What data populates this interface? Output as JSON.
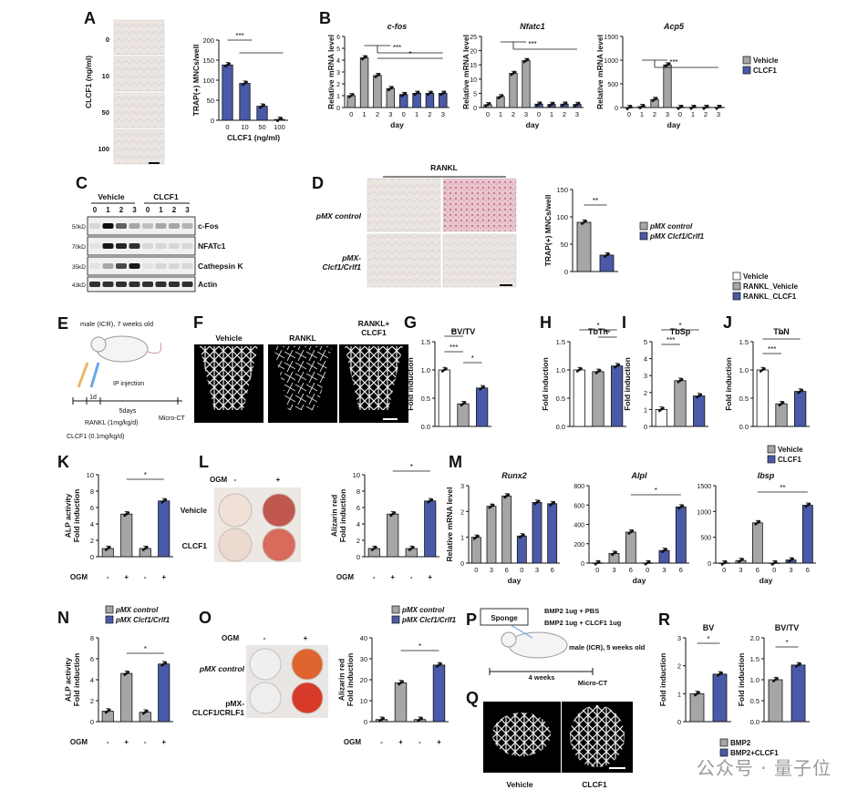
{
  "colors": {
    "vehicle": "#a6a6a6",
    "clcf1": "#4a5aa8",
    "white": "#ffffff",
    "black": "#111111"
  },
  "panels": {
    "A": {
      "letter": "A",
      "ylabel": "TRAP(+) MNCs/well",
      "xlabel": "CLCF1 (ng/ml)",
      "side_label": "CLCF1 (ng/ml)",
      "images": [
        "0",
        "10",
        "50",
        "100"
      ],
      "chart_data": {
        "type": "bar",
        "categories": [
          "0",
          "10",
          "50",
          "100"
        ],
        "values": [
          138,
          92,
          35,
          2
        ],
        "ylim": [
          0,
          200
        ],
        "yticks": [
          0,
          50,
          100,
          150,
          200
        ],
        "sig": "***"
      }
    },
    "B": {
      "letter": "B",
      "ylabel": "Relative mRNA level",
      "xlabel": "day",
      "charts": [
        {
          "title": "c-fos",
          "chart_data": {
            "type": "bar",
            "x": [
              "0",
              "1",
              "2",
              "3",
              "0",
              "1",
              "2",
              "3"
            ],
            "values": [
              1,
              4.2,
              2.7,
              1.6,
              1.1,
              1.2,
              1.2,
              1.2
            ],
            "ylim": [
              0,
              6
            ],
            "yticks": [
              0,
              1,
              2,
              3,
              4,
              5,
              6
            ],
            "sig": [
              "***",
              "*"
            ]
          }
        },
        {
          "title": "Nfatc1",
          "chart_data": {
            "type": "bar",
            "x": [
              "0",
              "1",
              "2",
              "3",
              "0",
              "1",
              "2",
              "3"
            ],
            "values": [
              1,
              3.8,
              12,
              16.5,
              1.2,
              1.1,
              1.2,
              1.1
            ],
            "ylim": [
              0,
              25
            ],
            "yticks": [
              0,
              5,
              10,
              15,
              20,
              25
            ],
            "sig": [
              "***"
            ]
          }
        },
        {
          "title": "Acp5",
          "chart_data": {
            "type": "bar",
            "x": [
              "0",
              "1",
              "2",
              "3",
              "0",
              "1",
              "2",
              "3"
            ],
            "values": [
              1,
              20,
              170,
              900,
              5,
              5,
              5,
              5
            ],
            "ylim": [
              0,
              1500
            ],
            "yticks": [
              0,
              500,
              1000,
              1500
            ],
            "sig": [
              "***"
            ]
          }
        }
      ],
      "legend": [
        "Vehicle",
        "CLCF1"
      ]
    },
    "C": {
      "letter": "C",
      "groups": [
        "Vehicle",
        "CLCF1"
      ],
      "lanes": [
        "0",
        "1",
        "2",
        "3",
        "0",
        "1",
        "2",
        "3"
      ],
      "bands": [
        "c-Fos",
        "NFATc1",
        "Cathepsin K",
        "Actin"
      ],
      "markers": [
        "50kD",
        "70kD",
        "35kD",
        "43kD"
      ]
    },
    "D": {
      "letter": "D",
      "top_label": "RANKL",
      "rows": [
        "pMX control",
        "pMX-\nClcf1/Crlf1"
      ],
      "ylabel": "TRAP(+) MNCs/well",
      "chart_data": {
        "type": "bar",
        "categories": [
          "pMX control",
          "pMX Clcf1/Crlf1"
        ],
        "values": [
          90,
          30
        ],
        "ylim": [
          0,
          150
        ],
        "yticks": [
          0,
          50,
          100,
          150
        ],
        "sig": "**"
      },
      "legend": [
        "pMX control",
        "pMX Clcf1/Crlf1"
      ]
    },
    "E": {
      "letter": "E",
      "mouse": "male (ICR), 7 weeks old",
      "ip": "IP injection",
      "d1": "1d",
      "d5": "5days",
      "rankl": "RANKL (1mg/kg/d)",
      "clcf1": "CLCF1 (0.1mg/kg/d)",
      "ct": "Micro-CT"
    },
    "F": {
      "letter": "F",
      "labels": [
        "Vehicle",
        "RANKL",
        "RANKL+\nCLCF1"
      ]
    },
    "legendGJ": [
      "Vehicle",
      "RANKL_Vehicle",
      "RANKL_CLCF1"
    ],
    "G": {
      "letter": "G",
      "title": "BV/TV",
      "ylabel": "Fold induction",
      "chart_data": {
        "type": "bar",
        "values": [
          1.0,
          0.4,
          0.68
        ],
        "ylim": [
          0,
          1.5
        ],
        "yticks": [
          0,
          0.5,
          1.0,
          1.5
        ],
        "sig": [
          "**",
          "***",
          "*"
        ]
      }
    },
    "H": {
      "letter": "H",
      "title": "TbTh",
      "ylabel": "Fold induction",
      "chart_data": {
        "type": "bar",
        "values": [
          1.0,
          0.97,
          1.07
        ],
        "ylim": [
          0,
          1.5
        ],
        "yticks": [
          0,
          0.5,
          1.0,
          1.5
        ],
        "sig": [
          "*",
          "**"
        ]
      }
    },
    "I": {
      "letter": "I",
      "title": "TbSp",
      "ylabel": "Fold induction",
      "chart_data": {
        "type": "bar",
        "values": [
          1.0,
          2.7,
          1.8
        ],
        "ylim": [
          0,
          5
        ],
        "yticks": [
          0,
          1,
          2,
          3,
          4,
          5
        ],
        "sig": [
          "*",
          "***"
        ]
      }
    },
    "J": {
      "letter": "J",
      "title": "TbN",
      "ylabel": "Fold induction",
      "chart_data": {
        "type": "bar",
        "values": [
          1.0,
          0.4,
          0.62
        ],
        "ylim": [
          0,
          1.5
        ],
        "yticks": [
          0,
          0.5,
          1.0,
          1.5
        ],
        "sig": [
          "**",
          "***"
        ]
      }
    },
    "K": {
      "letter": "K",
      "ylabel": "ALP activity\nFold induction",
      "ogm": "OGM",
      "signs": [
        "-",
        "+",
        "-",
        "+"
      ],
      "chart_data": {
        "type": "bar",
        "values": [
          1.0,
          5.2,
          1.0,
          6.8
        ],
        "ylim": [
          0,
          10
        ],
        "yticks": [
          0,
          2,
          4,
          6,
          8,
          10
        ],
        "sig": "*"
      }
    },
    "L": {
      "letter": "L",
      "ogm": "OGM",
      "cols": [
        "-",
        "+"
      ],
      "rows": [
        "Vehicle",
        "CLCF1"
      ],
      "ylabel": "Alizarin red\nFold induction",
      "signs": [
        "-",
        "+",
        "-",
        "+"
      ],
      "chart_data": {
        "type": "bar",
        "values": [
          1.0,
          5.2,
          1.0,
          6.8
        ],
        "ylim": [
          0,
          10
        ],
        "yticks": [
          0,
          2,
          4,
          6,
          8,
          10
        ],
        "sig": "*"
      }
    },
    "M": {
      "letter": "M",
      "ylabel": "Relative mRNA level",
      "xlabel": "day",
      "legend": [
        "Vehicle",
        "CLCF1"
      ],
      "charts": [
        {
          "title": "Runx2",
          "chart_data": {
            "type": "bar",
            "x": [
              "0",
              "3",
              "6",
              "0",
              "3",
              "6"
            ],
            "values": [
              1.0,
              2.2,
              2.6,
              1.05,
              2.35,
              2.3
            ],
            "ylim": [
              0,
              3
            ],
            "yticks": [
              0,
              1,
              2,
              3
            ]
          }
        },
        {
          "title": "Alpl",
          "chart_data": {
            "type": "bar",
            "x": [
              "0",
              "3",
              "6",
              "0",
              "3",
              "6"
            ],
            "values": [
              2,
              100,
              320,
              2,
              130,
              580
            ],
            "ylim": [
              0,
              800
            ],
            "yticks": [
              0,
              200,
              400,
              600,
              800
            ],
            "sig": "*"
          }
        },
        {
          "title": "Ibsp",
          "chart_data": {
            "type": "bar",
            "x": [
              "0",
              "3",
              "6",
              "0",
              "3",
              "6"
            ],
            "values": [
              2,
              50,
              780,
              2,
              60,
              1120
            ],
            "ylim": [
              0,
              1500
            ],
            "yticks": [
              0,
              500,
              1000,
              1500
            ],
            "sig": "**"
          }
        }
      ]
    },
    "N": {
      "letter": "N",
      "legend": [
        "pMX control",
        "pMX Clcf1/Crlf1"
      ],
      "ylabel": "ALP activity\nFold induction",
      "ogm": "OGM",
      "signs": [
        "-",
        "+",
        "-",
        "+"
      ],
      "chart_data": {
        "type": "bar",
        "values": [
          1.0,
          4.6,
          0.9,
          5.5
        ],
        "ylim": [
          0,
          8
        ],
        "yticks": [
          0,
          2,
          4,
          6,
          8
        ],
        "sig": "*"
      }
    },
    "O": {
      "letter": "O",
      "ogm": "OGM",
      "cols": [
        "-",
        "+"
      ],
      "rows": [
        "pMX control",
        "pMX-\nCLCF1/CRLF1"
      ],
      "legend": [
        "pMX control",
        "pMX Clcf1/Crlf1"
      ],
      "ylabel": "Alizarin red\nFold induction",
      "signs": [
        "-",
        "+",
        "-",
        "+"
      ],
      "chart_data": {
        "type": "bar",
        "values": [
          1.0,
          18.5,
          1.0,
          27
        ],
        "ylim": [
          0,
          40
        ],
        "yticks": [
          0,
          10,
          20,
          30,
          40
        ],
        "sig": "*"
      }
    },
    "P": {
      "letter": "P",
      "sponge": "Sponge",
      "bmp1": "BMP2 1ug + PBS",
      "bmp2": "BMP2 1ug + CLCF1 1ug",
      "mouse": "male (ICR), 5 weeks old",
      "weeks": "4 weeks",
      "ct": "Micro-CT"
    },
    "Q": {
      "letter": "Q",
      "labels": [
        "Vehicle",
        "CLCF1"
      ]
    },
    "R": {
      "letter": "R",
      "ylabel": "Fold induction",
      "legend": [
        "BMP2",
        "BMP2+CLCF1"
      ],
      "charts": [
        {
          "title": "BV",
          "chart_data": {
            "type": "bar",
            "values": [
              1.0,
              1.7
            ],
            "ylim": [
              0,
              3
            ],
            "yticks": [
              0,
              1,
              2,
              3
            ],
            "sig": "*"
          }
        },
        {
          "title": "BV/TV",
          "chart_data": {
            "type": "bar",
            "values": [
              1.0,
              1.35
            ],
            "ylim": [
              0,
              2
            ],
            "yticks": [
              0,
              0.5,
              1.0,
              1.5,
              2.0
            ],
            "sig": "*"
          }
        }
      ]
    }
  },
  "watermark": "公众号 · 量子位"
}
